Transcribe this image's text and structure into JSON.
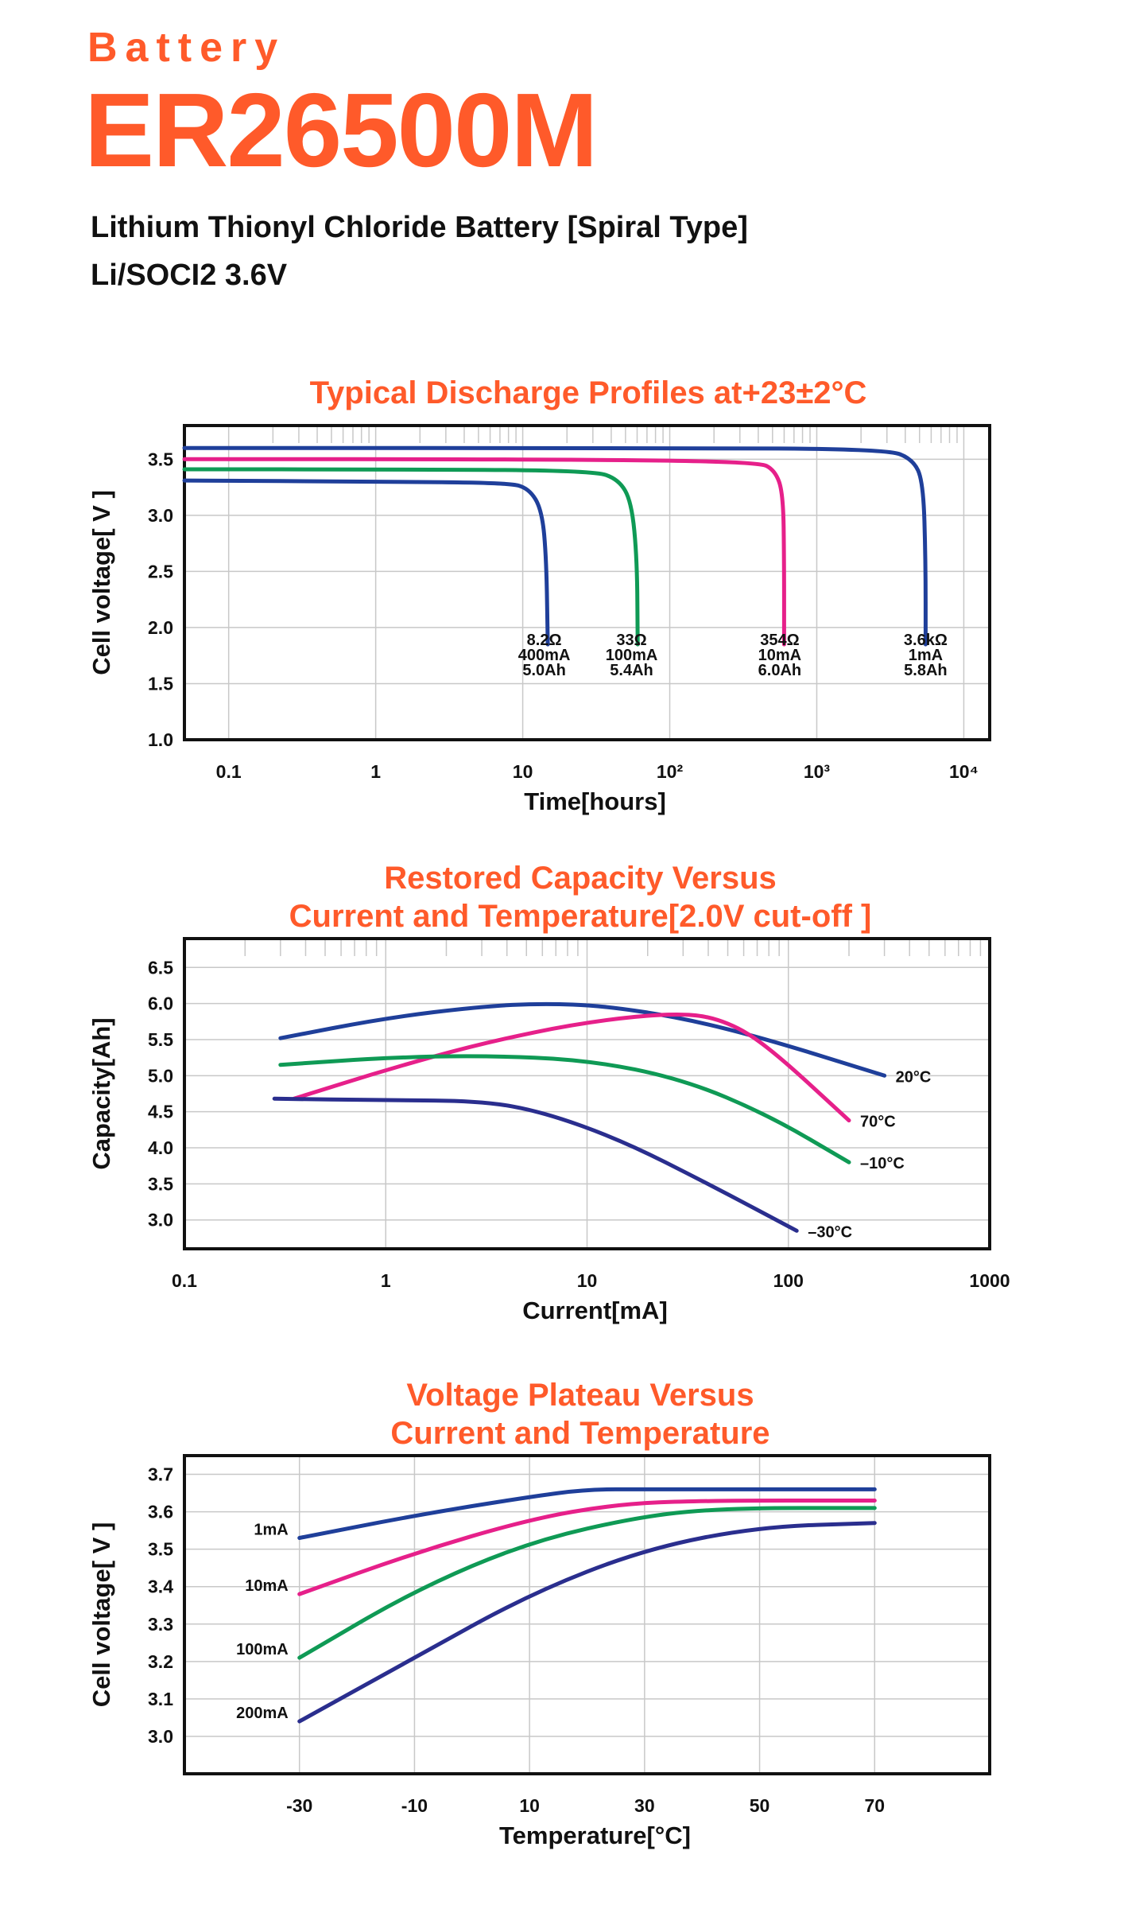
{
  "header": {
    "kicker": "Battery",
    "model": "ER26500M",
    "subtitle1": "Lithium Thionyl Chloride Battery [Spiral Type]",
    "subtitle2": "Li/SOCI2  3.6V"
  },
  "colors": {
    "accent": "#ff5a2a",
    "blue": "#1f3f9a",
    "magenta": "#e6208a",
    "green": "#0f9a55",
    "navy": "#2a2e8e"
  },
  "chart_data": [
    {
      "type": "line",
      "title": "Typical Discharge Profiles at+23±2°C",
      "xlabel": "Time[hours]",
      "ylabel": "Cell voltage[ V ]",
      "x_scale": "log",
      "xlim": [
        0.05,
        15000
      ],
      "ylim": [
        1.0,
        3.8
      ],
      "xticks": [
        0.1,
        1,
        10,
        100,
        1000,
        10000
      ],
      "xtick_labels": [
        "0.1",
        "1",
        "10",
        "10²",
        "10³",
        "10⁴"
      ],
      "yticks": [
        1.0,
        1.5,
        2.0,
        2.5,
        3.0,
        3.5
      ],
      "ytick_labels": [
        "1.0",
        "1.5",
        "2.0",
        "2.5",
        "3.0",
        "3.5"
      ],
      "grid": true,
      "series": [
        {
          "color": "#1f3f9a",
          "label": [
            "8.2Ω",
            "400mA",
            "5.0Ah"
          ],
          "label_x": 14,
          "label_y": 2.0,
          "points": [
            [
              0.05,
              3.31
            ],
            [
              1,
              3.3
            ],
            [
              8,
              3.29
            ],
            [
              11,
              3.24
            ],
            [
              13.5,
              3.05
            ],
            [
              14.5,
              2.6
            ],
            [
              14.8,
              1.85
            ]
          ]
        },
        {
          "color": "#0f9a55",
          "label": [
            "33Ω",
            "100mA",
            "5.4Ah"
          ],
          "label_x": 55,
          "label_y": 2.0,
          "points": [
            [
              0.05,
              3.41
            ],
            [
              1,
              3.41
            ],
            [
              30,
              3.4
            ],
            [
              45,
              3.32
            ],
            [
              55,
              3.12
            ],
            [
              60,
              2.6
            ],
            [
              60.5,
              1.85
            ]
          ]
        },
        {
          "color": "#e6208a",
          "label": [
            "354Ω",
            "10mA",
            "6.0Ah"
          ],
          "label_x": 560,
          "label_y": 2.0,
          "points": [
            [
              0.05,
              3.5
            ],
            [
              10,
              3.5
            ],
            [
              400,
              3.48
            ],
            [
              520,
              3.4
            ],
            [
              590,
              3.2
            ],
            [
              600,
              2.6
            ],
            [
              600,
              1.85
            ]
          ]
        },
        {
          "color": "#1f3f9a",
          "label": [
            "3.6kΩ",
            "1mA",
            "5.8Ah"
          ],
          "label_x": 5500,
          "label_y": 2.0,
          "points": [
            [
              0.05,
              3.6
            ],
            [
              100,
              3.6
            ],
            [
              3000,
              3.59
            ],
            [
              4500,
              3.5
            ],
            [
              5300,
              3.3
            ],
            [
              5500,
              2.6
            ],
            [
              5500,
              1.85
            ]
          ]
        }
      ]
    },
    {
      "type": "line",
      "title": "Restored Capacity Versus Current and Temperature[2.0V cut-off ]",
      "xlabel": "Current[mA]",
      "ylabel": "Capacity[Ah]",
      "x_scale": "log",
      "xlim": [
        0.1,
        1000
      ],
      "ylim": [
        2.6,
        6.9
      ],
      "xticks": [
        0.1,
        1,
        10,
        100,
        1000
      ],
      "xtick_labels": [
        "0.1",
        "1",
        "10",
        "100",
        "1000"
      ],
      "yticks": [
        3.0,
        3.5,
        4.0,
        4.5,
        5.0,
        5.5,
        6.0,
        6.5
      ],
      "ytick_labels": [
        "3.0",
        "3.5",
        "4.0",
        "4.5",
        "5.0",
        "5.5",
        "6.0",
        "6.5"
      ],
      "grid": true,
      "series": [
        {
          "name": "20°C",
          "color": "#1f3f9a",
          "points": [
            [
              0.3,
              5.52
            ],
            [
              1,
              5.8
            ],
            [
              3,
              5.96
            ],
            [
              6,
              6.0
            ],
            [
              12,
              5.97
            ],
            [
              30,
              5.8
            ],
            [
              80,
              5.5
            ],
            [
              300,
              5.0
            ]
          ]
        },
        {
          "name": "70°C",
          "color": "#e6208a",
          "points": [
            [
              0.35,
              4.68
            ],
            [
              1,
              5.08
            ],
            [
              3,
              5.45
            ],
            [
              10,
              5.75
            ],
            [
              30,
              5.88
            ],
            [
              50,
              5.75
            ],
            [
              80,
              5.4
            ],
            [
              200,
              4.38
            ]
          ]
        },
        {
          "name": "–10°C",
          "color": "#0f9a55",
          "points": [
            [
              0.3,
              5.15
            ],
            [
              1,
              5.25
            ],
            [
              3,
              5.28
            ],
            [
              10,
              5.22
            ],
            [
              30,
              4.95
            ],
            [
              80,
              4.45
            ],
            [
              200,
              3.8
            ]
          ]
        },
        {
          "name": "–30°C",
          "color": "#2a2e8e",
          "points": [
            [
              0.28,
              4.68
            ],
            [
              1,
              4.66
            ],
            [
              3,
              4.65
            ],
            [
              6,
              4.5
            ],
            [
              15,
              4.1
            ],
            [
              40,
              3.5
            ],
            [
              110,
              2.85
            ]
          ]
        }
      ]
    },
    {
      "type": "line",
      "title": "Voltage Plateau Versus Current and Temperature",
      "xlabel": "Temperature[°C]",
      "ylabel": "Cell voltage[ V ]",
      "x_scale": "linear",
      "xlim": [
        -50,
        90
      ],
      "ylim": [
        2.9,
        3.75
      ],
      "xticks": [
        -30,
        -10,
        10,
        30,
        50,
        70
      ],
      "xtick_labels": [
        "-30",
        "-10",
        "10",
        "30",
        "50",
        "70"
      ],
      "yticks": [
        3.0,
        3.1,
        3.2,
        3.3,
        3.4,
        3.5,
        3.6,
        3.7
      ],
      "ytick_labels": [
        "3.0",
        "3.1",
        "3.2",
        "3.3",
        "3.4",
        "3.5",
        "3.6",
        "3.7"
      ],
      "grid": true,
      "series": [
        {
          "name": "1mA",
          "color": "#1f3f9a",
          "points": [
            [
              -30,
              3.53
            ],
            [
              -10,
              3.59
            ],
            [
              10,
              3.64
            ],
            [
              20,
              3.66
            ],
            [
              30,
              3.66
            ],
            [
              70,
              3.66
            ]
          ]
        },
        {
          "name": "10mA",
          "color": "#e6208a",
          "points": [
            [
              -30,
              3.38
            ],
            [
              -10,
              3.49
            ],
            [
              10,
              3.58
            ],
            [
              25,
              3.62
            ],
            [
              40,
              3.63
            ],
            [
              70,
              3.63
            ]
          ]
        },
        {
          "name": "100mA",
          "color": "#0f9a55",
          "points": [
            [
              -30,
              3.21
            ],
            [
              -10,
              3.39
            ],
            [
              10,
              3.52
            ],
            [
              30,
              3.59
            ],
            [
              45,
              3.61
            ],
            [
              70,
              3.61
            ]
          ]
        },
        {
          "name": "200mA",
          "color": "#2a2e8e",
          "points": [
            [
              -30,
              3.04
            ],
            [
              -10,
              3.21
            ],
            [
              10,
              3.38
            ],
            [
              30,
              3.5
            ],
            [
              50,
              3.56
            ],
            [
              70,
              3.57
            ]
          ]
        }
      ]
    }
  ]
}
